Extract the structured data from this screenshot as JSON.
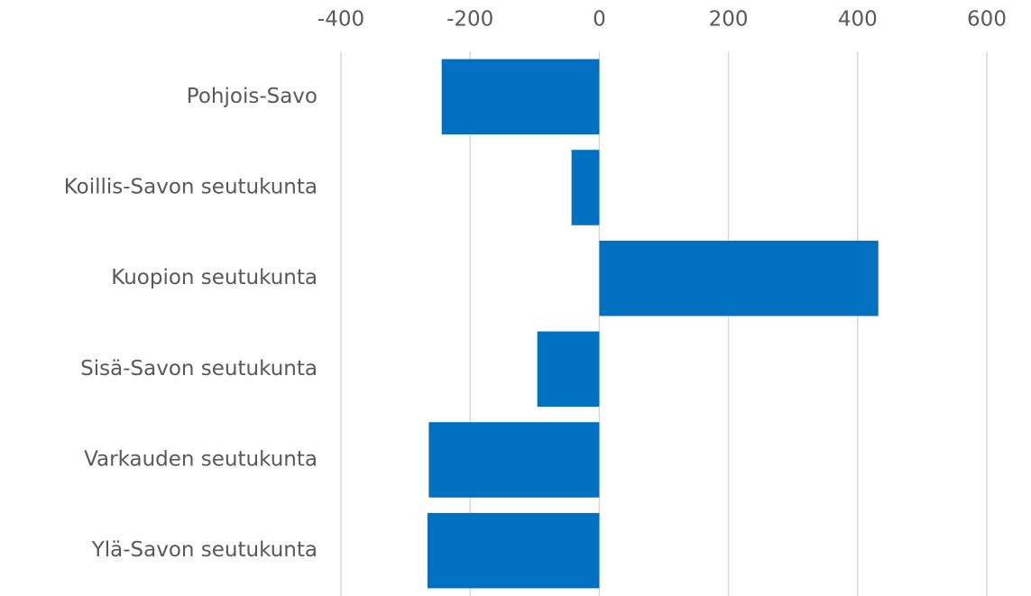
{
  "chart_data": {
    "type": "bar",
    "orientation": "horizontal",
    "categories": [
      "Pohjois-Savo",
      "Koillis-Savon seutukunta",
      "Kuopion seutukunta",
      "Sisä-Savon seutukunta",
      "Varkauden seutukunta",
      "Ylä-Savon seutukunta"
    ],
    "values": [
      -244,
      -43,
      432,
      -96,
      -264,
      -266
    ],
    "color": "#0070c0",
    "xlim": [
      -400,
      600
    ],
    "xticks": [
      -400,
      -200,
      0,
      200,
      400,
      600
    ],
    "grid": true
  }
}
